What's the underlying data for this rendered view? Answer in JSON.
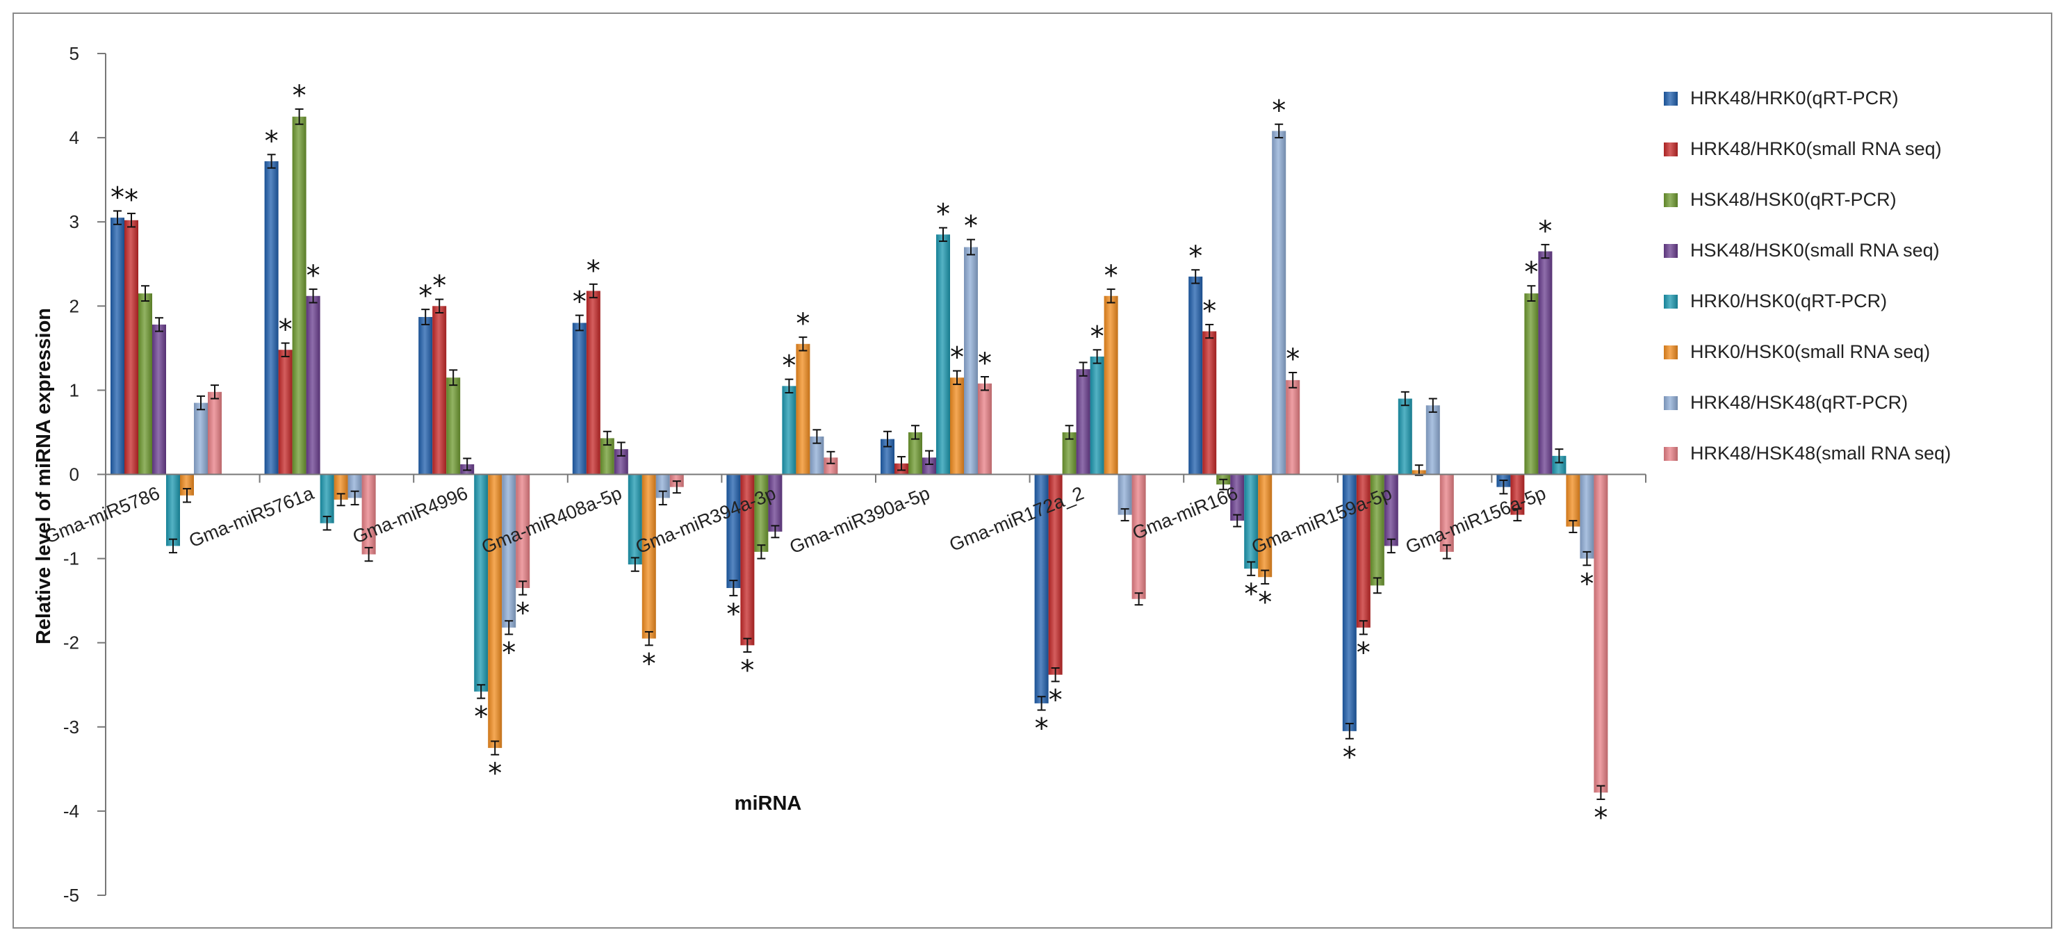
{
  "chart_data": {
    "type": "bar",
    "xlabel": "miRNA",
    "ylabel": "Relative level of miRNA expression",
    "ylim": [
      -5,
      5
    ],
    "yticks": [
      "5",
      "4",
      "3",
      "2",
      "1",
      "0",
      "-1",
      "-2",
      "-3",
      "-4",
      "-5"
    ],
    "grid": false,
    "legend_position": "right",
    "categories": [
      "Gma-miR5786",
      "Gma-miR5761a",
      "Gma-miR4996",
      "Gma-miR408a-5p",
      "Gma-miR394a-3p",
      "Gma-miR390a-5p",
      "Gma-miR172a_2",
      "Gma-miR166",
      "Gma-miR159a-5p",
      "Gma-miR156a-5p"
    ],
    "significance_marker": "*",
    "series": [
      {
        "name": "HRK48/HRK0(qRT-PCR)",
        "color": "#1f5fad",
        "values": [
          3.05,
          3.72,
          1.87,
          1.8,
          -1.35,
          0.42,
          -2.72,
          2.35,
          -3.05,
          -0.15
        ],
        "errors": [
          0.08,
          0.08,
          0.09,
          0.09,
          0.09,
          0.09,
          0.08,
          0.08,
          0.09,
          0.08
        ],
        "significant": [
          true,
          true,
          true,
          true,
          true,
          false,
          true,
          true,
          true,
          false
        ]
      },
      {
        "name": "HRK48/HRK0(small RNA seq)",
        "color": "#c62828",
        "values": [
          3.02,
          1.48,
          2.0,
          2.18,
          -2.03,
          0.13,
          -2.38,
          1.7,
          -1.82,
          -0.48
        ],
        "errors": [
          0.08,
          0.08,
          0.08,
          0.08,
          0.08,
          0.08,
          0.08,
          0.08,
          0.08,
          0.07
        ],
        "significant": [
          true,
          true,
          true,
          true,
          true,
          false,
          true,
          true,
          true,
          false
        ]
      },
      {
        "name": "HSK48/HSK0(qRT-PCR)",
        "color": "#6e9a2f",
        "values": [
          2.15,
          4.25,
          1.15,
          0.43,
          -0.92,
          0.5,
          0.5,
          -0.12,
          -1.32,
          2.15
        ],
        "errors": [
          0.09,
          0.09,
          0.09,
          0.08,
          0.08,
          0.08,
          0.08,
          0.06,
          0.09,
          0.09
        ],
        "significant": [
          false,
          true,
          false,
          false,
          false,
          false,
          false,
          false,
          false,
          true
        ]
      },
      {
        "name": "HSK48/HSK0(small RNA seq)",
        "color": "#6a3d8f",
        "values": [
          1.78,
          2.12,
          0.12,
          0.3,
          -0.68,
          0.2,
          1.25,
          -0.55,
          -0.85,
          2.65
        ],
        "errors": [
          0.08,
          0.08,
          0.07,
          0.08,
          0.07,
          0.08,
          0.08,
          0.07,
          0.08,
          0.08
        ],
        "significant": [
          false,
          true,
          false,
          false,
          false,
          false,
          false,
          false,
          false,
          true
        ]
      },
      {
        "name": "HRK0/HSK0(qRT-PCR)",
        "color": "#1b98b0",
        "values": [
          -0.85,
          -0.58,
          -2.58,
          -1.07,
          1.05,
          2.85,
          1.4,
          -1.12,
          0.9,
          0.22
        ],
        "errors": [
          0.08,
          0.08,
          0.08,
          0.08,
          0.08,
          0.08,
          0.08,
          0.08,
          0.08,
          0.08
        ],
        "significant": [
          false,
          false,
          true,
          false,
          true,
          true,
          true,
          true,
          false,
          false
        ]
      },
      {
        "name": "HRK0/HSK0(small RNA seq)",
        "color": "#f28c1e",
        "values": [
          -0.25,
          -0.3,
          -3.25,
          -1.95,
          1.55,
          1.15,
          2.12,
          -1.22,
          0.05,
          -0.62
        ],
        "errors": [
          0.08,
          0.07,
          0.08,
          0.08,
          0.08,
          0.08,
          0.08,
          0.08,
          0.06,
          0.07
        ],
        "significant": [
          false,
          false,
          true,
          true,
          true,
          true,
          true,
          true,
          false,
          false
        ]
      },
      {
        "name": "HRK48/HSK48(qRT-PCR)",
        "color": "#8eacd6",
        "values": [
          0.85,
          -0.28,
          -1.82,
          -0.28,
          0.45,
          2.7,
          -0.48,
          4.08,
          0.82,
          -1.0
        ],
        "errors": [
          0.08,
          0.08,
          0.08,
          0.08,
          0.08,
          0.09,
          0.07,
          0.08,
          0.08,
          0.08
        ],
        "significant": [
          false,
          false,
          true,
          false,
          false,
          true,
          false,
          true,
          false,
          true
        ]
      },
      {
        "name": "HRK48/HSK48(small RNA seq)",
        "color": "#e87f85",
        "values": [
          0.98,
          -0.95,
          -1.35,
          -0.15,
          0.2,
          1.08,
          -1.48,
          1.12,
          -0.92,
          -3.78
        ],
        "errors": [
          0.08,
          0.08,
          0.08,
          0.07,
          0.07,
          0.08,
          0.07,
          0.09,
          0.08,
          0.08
        ],
        "significant": [
          false,
          false,
          true,
          false,
          false,
          true,
          false,
          true,
          false,
          true
        ]
      }
    ]
  }
}
